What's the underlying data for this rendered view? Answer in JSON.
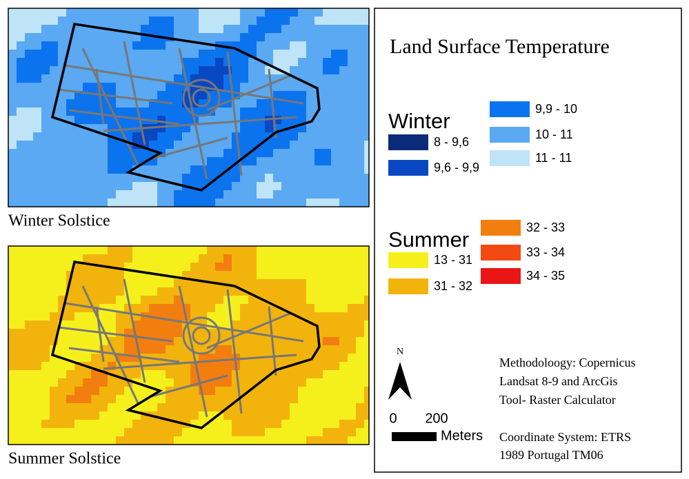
{
  "maps": [
    {
      "caption": "Winter Solstice",
      "group": 0
    },
    {
      "caption": "Summer Solstice",
      "group": 1
    }
  ],
  "legend": {
    "title": "Land Surface Temperature",
    "groups": [
      {
        "name": "Winter",
        "classes": [
          {
            "label": "8 - 9,6",
            "color": "#0b2a7a"
          },
          {
            "label": "9,6 - 9,9",
            "color": "#0a47c2"
          },
          {
            "label": "9,9 - 10",
            "color": "#0c73ee"
          },
          {
            "label": "10 - 11",
            "color": "#5aa9f2"
          },
          {
            "label": "11 - 11",
            "color": "#bfe3f7"
          }
        ]
      },
      {
        "name": "Summer",
        "classes": [
          {
            "label": "13 - 31",
            "color": "#f5f01c"
          },
          {
            "label": "31 - 32",
            "color": "#f2b40c"
          },
          {
            "label": "32 - 33",
            "color": "#f27e10"
          },
          {
            "label": "33 - 34",
            "color": "#f24a12"
          },
          {
            "label": "34 - 35",
            "color": "#ea1616"
          }
        ]
      }
    ]
  },
  "north": "N",
  "scale": {
    "labels": [
      "0",
      "200"
    ],
    "unit": "Meters"
  },
  "notes": [
    "Methodoloogy: Copernicus",
    "Landsat 8-9 and ArcGis",
    "Tool- Raster Calculator",
    "Coordinate System: ETRS",
    "1989 Portugal TM06"
  ]
}
